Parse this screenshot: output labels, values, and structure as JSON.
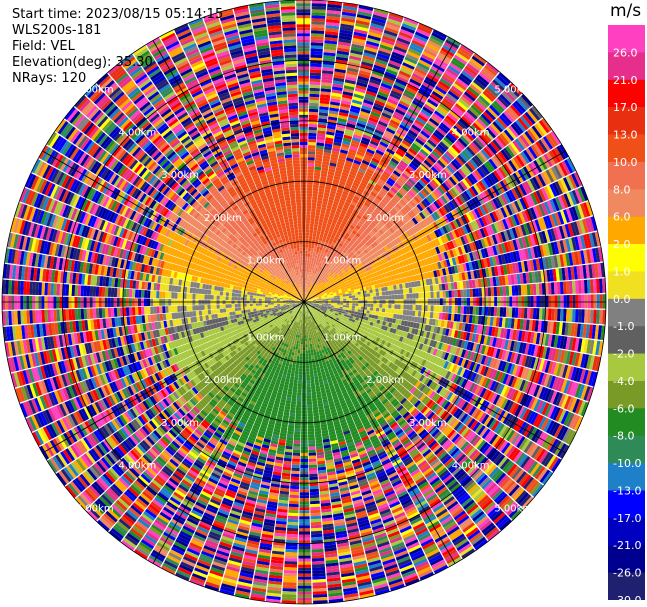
{
  "header": {
    "start_time": "Start time: 2023/08/15 05:14:15",
    "instrument": "WLS200s-181",
    "field": "Field: VEL",
    "elevation": "Elevation(deg): 35.30",
    "nrays": "NRays: 120"
  },
  "chart_data": {
    "type": "heatmap",
    "subtype": "polar-ppi",
    "field": "VEL",
    "units": "m/s",
    "n_rays": 120,
    "max_range_km": 5.0,
    "range_rings_km": [
      1.0,
      2.0,
      3.0,
      4.0,
      5.0
    ],
    "range_ring_labels": [
      "1.00km",
      "2.00km",
      "3.00km",
      "4.00km",
      "5.00km"
    ],
    "radial_lines_deg": [
      0,
      30,
      60,
      90,
      120,
      150,
      180,
      210,
      240,
      270,
      300,
      330
    ],
    "coherent_region_km": 2.5,
    "velocity_pattern": {
      "toward_north_max": 12.0,
      "toward_south_min": -7.5,
      "description": "positive velocities north of center, negative velocities south of center, noise beyond ~2.5km"
    },
    "colorbar": {
      "title": "m/s",
      "tick_labels": [
        "26.0",
        "21.0",
        "17.0",
        "13.0",
        "10.0",
        "8.0",
        "6.0",
        "2.0",
        "1.0",
        "0.0",
        "-1.0",
        "-2.0",
        "-4.0",
        "-6.0",
        "-8.0",
        "-10.0",
        "-13.0",
        "-17.0",
        "-21.0",
        "-26.0",
        "-30.0"
      ],
      "boundaries": [
        30,
        26,
        21,
        17,
        13,
        10,
        8,
        6,
        2,
        1,
        0,
        -1,
        -2,
        -4,
        -6,
        -8,
        -10,
        -13,
        -17,
        -21,
        -26,
        -30
      ],
      "colors": [
        "#ff40c0",
        "#e62e8c",
        "#ff0000",
        "#e83010",
        "#f05018",
        "#f07050",
        "#f08860",
        "#ffa800",
        "#ffff00",
        "#f0e020",
        "#808080",
        "#606060",
        "#a8c840",
        "#7a9a28",
        "#228b22",
        "#2e8b57",
        "#1e80c8",
        "#0000ff",
        "#0000c0",
        "#000090",
        "#202070"
      ]
    }
  }
}
